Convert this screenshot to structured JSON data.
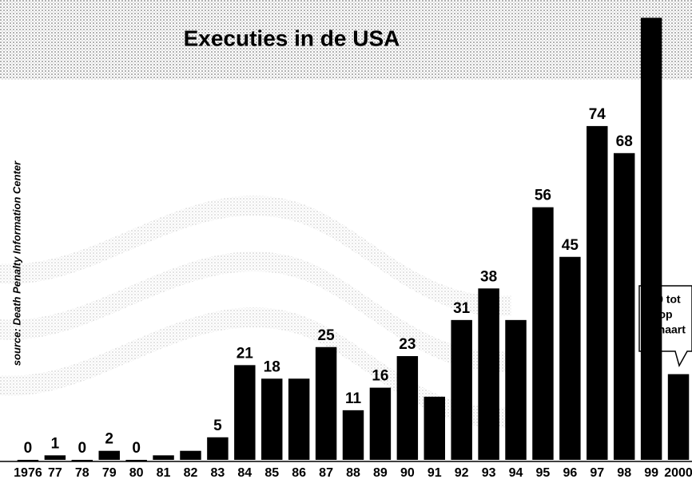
{
  "chart_data": {
    "type": "bar",
    "title": "Executies in de USA",
    "source": "source: Death Penalty Information Center",
    "annotation": [
      "19 tot",
      "op",
      "2 maart"
    ],
    "categories": [
      "1976",
      "77",
      "78",
      "79",
      "80",
      "81",
      "82",
      "83",
      "84",
      "85",
      "86",
      "87",
      "88",
      "89",
      "90",
      "91",
      "92",
      "93",
      "94",
      "95",
      "96",
      "97",
      "98",
      "99",
      "2000"
    ],
    "values": [
      0,
      1,
      0,
      2,
      0,
      1,
      2,
      5,
      21,
      18,
      18,
      25,
      11,
      16,
      23,
      14,
      31,
      38,
      31,
      56,
      45,
      74,
      68,
      98,
      19
    ],
    "value_labels": [
      "0",
      "1",
      "0",
      "2",
      "0",
      null,
      null,
      "5",
      "21",
      "18",
      null,
      "25",
      "11",
      "16",
      "23",
      null,
      "31",
      "38",
      null,
      "56",
      "45",
      "74",
      "68",
      "98",
      null
    ],
    "color": "#000000",
    "ylim": [
      0,
      100
    ]
  }
}
